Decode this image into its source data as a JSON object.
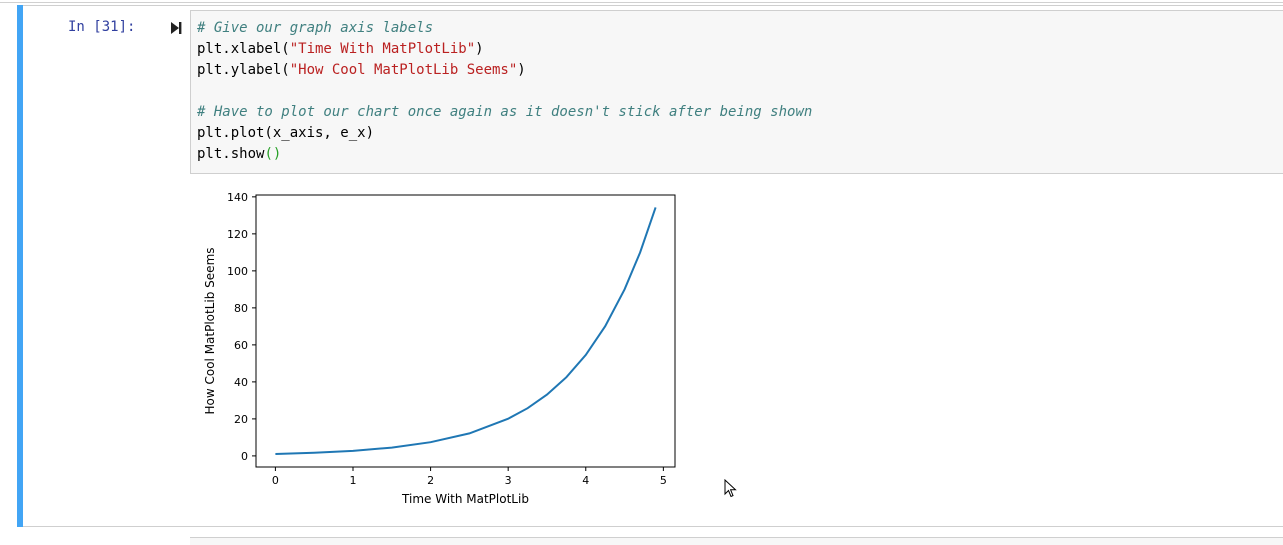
{
  "cell": {
    "prompt": "In [31]:",
    "run_icon": "run-cell-icon",
    "code": {
      "line1_comment": "# Give our graph axis labels",
      "line2_prefix": "plt.xlabel(",
      "line2_string": "\"Time With MatPlotLib\"",
      "line2_suffix": ")",
      "line3_prefix": "plt.ylabel(",
      "line3_string": "\"How Cool MatPlotLib Seems\"",
      "line3_suffix": ")",
      "line5_comment": "# Have to plot our chart once again as it doesn't stick after being shown",
      "line6": "plt.plot(x_axis, e_x)",
      "line7_prefix": "plt.show",
      "line7_parens": "()"
    },
    "colors": {
      "accent": "#42a5f5",
      "prompt": "#303f9f",
      "comment": "#408080",
      "string": "#ba2121",
      "line": "#1f77b4"
    }
  },
  "chart_data": {
    "type": "line",
    "title": "",
    "xlabel": "Time With MatPlotLib",
    "ylabel": "How Cool MatPlotLib Seems",
    "xlim": [
      -0.25,
      5.15
    ],
    "ylim": [
      -6,
      141
    ],
    "xticks": [
      0,
      1,
      2,
      3,
      4,
      5
    ],
    "yticks": [
      0,
      20,
      40,
      60,
      80,
      100,
      120,
      140
    ],
    "grid": false,
    "series": [
      {
        "function": "exp(x)",
        "x": [
          0,
          0.5,
          1,
          1.5,
          2,
          2.5,
          3,
          3.25,
          3.5,
          3.75,
          4,
          4.25,
          4.5,
          4.7,
          4.9
        ],
        "y": [
          1,
          1.65,
          2.72,
          4.48,
          7.39,
          12.18,
          20.09,
          25.79,
          33.12,
          42.52,
          54.6,
          70.11,
          90.02,
          109.95,
          134.29
        ]
      }
    ]
  }
}
